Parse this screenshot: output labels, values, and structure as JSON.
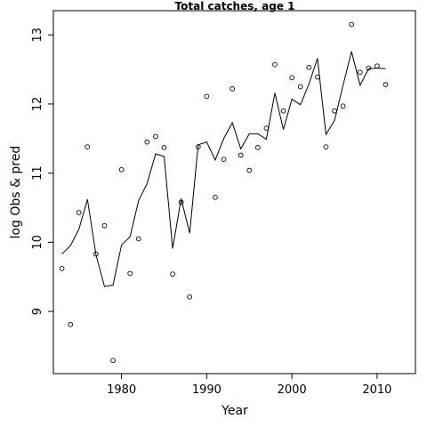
{
  "chart_data": {
    "type": "line",
    "title": "Total catches, age 1",
    "xlabel": "Year",
    "ylabel": "log Obs & pred",
    "xlim": [
      1972,
      2014.5
    ],
    "ylim": [
      8.1,
      13.35
    ],
    "x_ticks": [
      1980,
      1990,
      2000,
      2010
    ],
    "y_ticks": [
      9,
      10,
      11,
      12,
      13
    ],
    "grid": false,
    "legend": "none",
    "series": [
      {
        "style": "points",
        "x": [
          1973,
          1974,
          1975,
          1976,
          1977,
          1978,
          1979,
          1980,
          1981,
          1982,
          1983,
          1984,
          1985,
          1986,
          1987,
          1988,
          1989,
          1990,
          1991,
          1992,
          1993,
          1994,
          1995,
          1996,
          1997,
          1998,
          1999,
          2000,
          2001,
          2002,
          2003,
          2004,
          2005,
          2006,
          2007,
          2008,
          2009,
          2010,
          2011
        ],
        "y": [
          9.62,
          8.81,
          10.43,
          11.38,
          9.83,
          10.24,
          8.29,
          11.05,
          9.55,
          10.05,
          11.45,
          11.53,
          11.37,
          9.54,
          10.58,
          9.21,
          11.38,
          12.11,
          10.65,
          11.2,
          12.22,
          11.26,
          11.04,
          11.37,
          11.65,
          12.57,
          11.9,
          12.38,
          12.25,
          12.53,
          12.39,
          11.38,
          11.9,
          11.97,
          13.15,
          12.46,
          12.52,
          12.55,
          12.28
        ]
      },
      {
        "style": "line",
        "x": [
          1973,
          1974,
          1975,
          1976,
          1977,
          1978,
          1979,
          1980,
          1981,
          1982,
          1983,
          1984,
          1985,
          1986,
          1987,
          1988,
          1989,
          1990,
          1991,
          1992,
          1993,
          1994,
          1995,
          1996,
          1997,
          1998,
          1999,
          2000,
          2001,
          2002,
          2003,
          2004,
          2005,
          2006,
          2007,
          2008,
          2009,
          2010,
          2011
        ],
        "y": [
          9.83,
          9.95,
          10.19,
          10.62,
          9.82,
          9.36,
          9.38,
          9.96,
          10.08,
          10.6,
          10.85,
          11.28,
          11.24,
          9.91,
          10.63,
          10.13,
          11.41,
          11.45,
          11.19,
          11.5,
          11.73,
          11.35,
          11.57,
          11.57,
          11.49,
          12.16,
          11.63,
          12.07,
          11.99,
          12.29,
          12.66,
          11.56,
          11.76,
          12.27,
          12.76,
          12.27,
          12.51,
          12.52,
          12.51
        ]
      }
    ]
  }
}
